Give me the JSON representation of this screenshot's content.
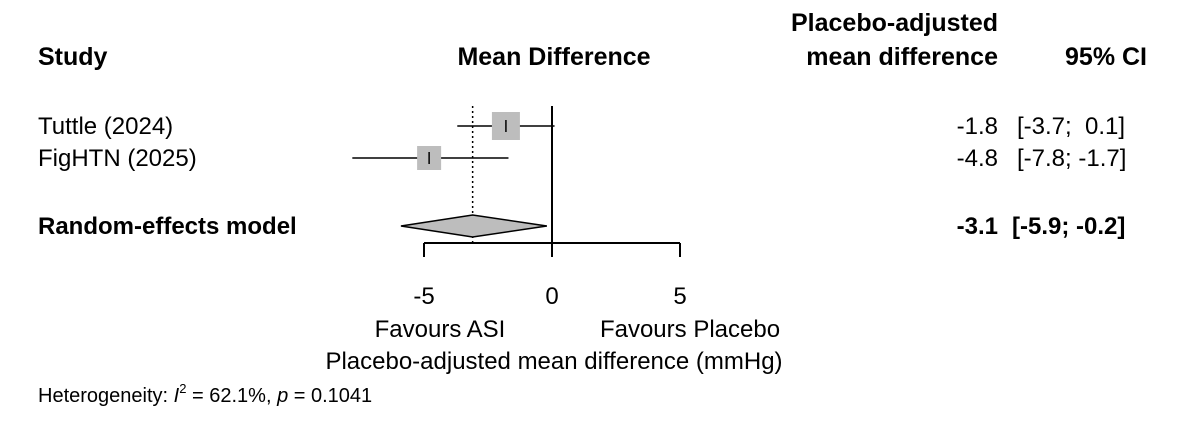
{
  "headers": {
    "study": "Study",
    "mean_difference": "Mean Difference",
    "adjusted_line1": "Placebo-adjusted",
    "adjusted_line2": "mean difference",
    "ci": "95% CI"
  },
  "studies": [
    {
      "name": "Tuttle (2024)",
      "md_text": "-1.8",
      "ci_text": "[-3.7;  0.1]"
    },
    {
      "name": "FigHTN (2025)",
      "md_text": "-4.8",
      "ci_text": "[-7.8; -1.7]"
    }
  ],
  "pooled": {
    "name": "Random-effects model",
    "md_text": "-3.1",
    "ci_text": "[-5.9; -0.2]"
  },
  "axis": {
    "favours_left": "Favours ASI",
    "favours_right": "Favours Placebo",
    "xlabel": "Placebo-adjusted mean difference (mmHg)"
  },
  "heterogeneity": {
    "prefix": "Heterogeneity: ",
    "i2_symbol": "I",
    "i2_sup": "2",
    "i2_rest": " = 62.1%, ",
    "p_symbol": "p",
    "p_rest": " = 0.1041"
  },
  "colors": {
    "box": "#bdbdbd",
    "diamond": "#bdbdbd",
    "line": "#000000"
  },
  "chart_data": {
    "type": "forest",
    "xlim": [
      -5,
      5
    ],
    "ticks": [
      -5,
      0,
      5
    ],
    "null_line": 0,
    "studies": [
      {
        "name": "Tuttle (2024)",
        "md": -1.8,
        "lower": -3.7,
        "upper": 0.1
      },
      {
        "name": "FigHTN (2025)",
        "md": -4.8,
        "lower": -7.8,
        "upper": -1.7
      }
    ],
    "pooled": {
      "name": "Random-effects model",
      "md": -3.1,
      "lower": -5.9,
      "upper": -0.2
    }
  }
}
